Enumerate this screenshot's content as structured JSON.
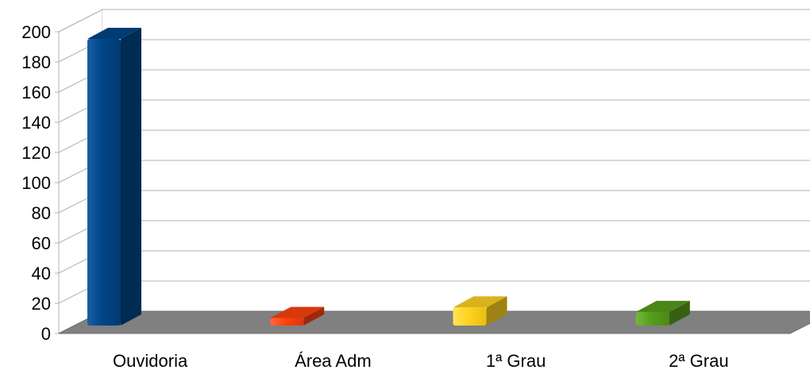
{
  "chart_data": {
    "type": "bar",
    "categories": [
      "Ouvidoria",
      "Área Adm",
      "1ª Grau",
      "2ª Grau"
    ],
    "values": [
      190,
      5,
      12,
      9
    ],
    "colors": [
      "#004586",
      "#ff420e",
      "#ffd320",
      "#579d1c"
    ],
    "ylim": [
      0,
      200
    ],
    "yticks": [
      0,
      20,
      40,
      60,
      80,
      100,
      120,
      140,
      160,
      180,
      200
    ],
    "ytick_labels": [
      "0",
      "20",
      "40",
      "60",
      "80",
      "100",
      "120",
      "140",
      "160",
      "180",
      "200"
    ],
    "grid": true,
    "style": "3d",
    "legend": "none"
  }
}
